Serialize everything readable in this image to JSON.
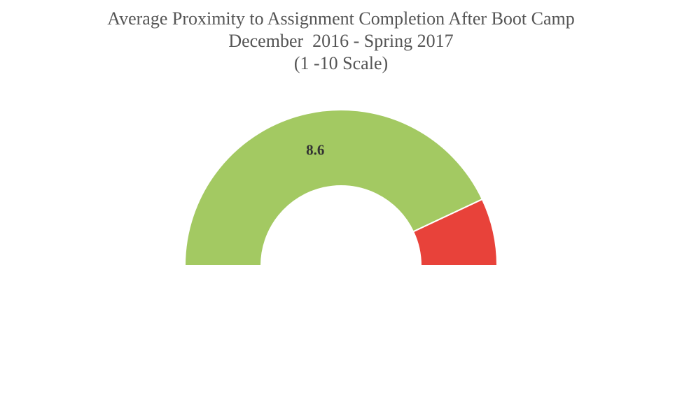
{
  "chart_data": {
    "type": "gauge",
    "title": "Average Proximity to Assignment Completion After Boot Camp",
    "subtitle": [
      "December  2016 - Spring 2017",
      "(1 -10 Scale)"
    ],
    "series": [
      {
        "color": "#a3c962",
        "values": [
          8.6
        ],
        "show_label": true
      },
      {
        "color": "#e8423a",
        "values": [
          1.4
        ],
        "show_label": false
      }
    ]
  }
}
